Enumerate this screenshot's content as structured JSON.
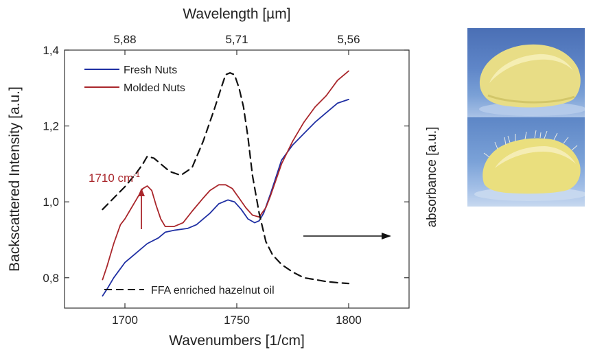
{
  "chart_data": {
    "type": "line",
    "xlabel": "Wavenumbers [1/cm]",
    "ylabel": "Backscattered Intensity [a.u.]",
    "x2label": "Wavelength [µm]",
    "y2label": "absorbance [a.u.]",
    "xlim": [
      1673,
      1827
    ],
    "ylim": [
      0.72,
      1.4
    ],
    "x_ticks": [
      1700,
      1750,
      1800
    ],
    "y_ticks": [
      0.8,
      1.0,
      1.2,
      1.4
    ],
    "y_tick_labels": [
      "0,8",
      "1,0",
      "1,2",
      "1,4"
    ],
    "top_ticks": [
      {
        "x": 1700,
        "label": "5,88"
      },
      {
        "x": 1750,
        "label": "5,71"
      },
      {
        "x": 1800,
        "label": "5,56"
      }
    ],
    "grid": false,
    "legend_position": "top-left",
    "series": [
      {
        "name": "Fresh Nuts",
        "color": "#1f2fa3",
        "style": "solid",
        "x": [
          1690,
          1692,
          1695,
          1700,
          1705,
          1710,
          1715,
          1718,
          1722,
          1728,
          1732,
          1735,
          1738,
          1742,
          1746,
          1749,
          1752,
          1755,
          1758,
          1760,
          1762,
          1765,
          1770,
          1775,
          1780,
          1785,
          1790,
          1795,
          1800
        ],
        "y": [
          0.752,
          0.77,
          0.8,
          0.84,
          0.865,
          0.89,
          0.905,
          0.92,
          0.925,
          0.93,
          0.94,
          0.955,
          0.97,
          0.995,
          1.005,
          1.0,
          0.98,
          0.955,
          0.945,
          0.95,
          0.97,
          1.02,
          1.11,
          1.15,
          1.18,
          1.21,
          1.235,
          1.26,
          1.27
        ]
      },
      {
        "name": "Molded Nuts",
        "color": "#a9262b",
        "style": "solid",
        "x": [
          1690,
          1692,
          1695,
          1698,
          1700,
          1702,
          1705,
          1708,
          1710,
          1712,
          1714,
          1716,
          1718,
          1722,
          1726,
          1730,
          1735,
          1738,
          1742,
          1745,
          1748,
          1751,
          1754,
          1757,
          1760,
          1763,
          1765,
          1770,
          1775,
          1780,
          1785,
          1790,
          1795,
          1800
        ],
        "y": [
          0.795,
          0.83,
          0.89,
          0.94,
          0.955,
          0.975,
          1.005,
          1.035,
          1.042,
          1.03,
          0.99,
          0.955,
          0.935,
          0.935,
          0.945,
          0.975,
          1.01,
          1.03,
          1.045,
          1.045,
          1.035,
          1.01,
          0.985,
          0.965,
          0.96,
          0.985,
          1.015,
          1.1,
          1.16,
          1.21,
          1.25,
          1.28,
          1.32,
          1.345
        ]
      },
      {
        "name": "FFA enriched hazelnut oil",
        "color": "#111111",
        "style": "dashed",
        "x": [
          1690,
          1695,
          1700,
          1705,
          1708,
          1710,
          1713,
          1716,
          1720,
          1725,
          1730,
          1735,
          1740,
          1743,
          1745,
          1747,
          1749,
          1751,
          1753,
          1755,
          1757,
          1760,
          1763,
          1766,
          1770,
          1775,
          1780,
          1785,
          1790,
          1795,
          1800
        ],
        "y": [
          0.98,
          1.01,
          1.04,
          1.075,
          1.1,
          1.12,
          1.115,
          1.1,
          1.08,
          1.07,
          1.09,
          1.16,
          1.245,
          1.3,
          1.335,
          1.34,
          1.335,
          1.3,
          1.25,
          1.17,
          1.07,
          0.97,
          0.895,
          0.86,
          0.835,
          0.815,
          0.8,
          0.795,
          0.79,
          0.787,
          0.785
        ]
      }
    ],
    "annotations": [
      {
        "text": "1710 cm",
        "superscript": "-1",
        "color": "#a9262b",
        "x": 1710
      }
    ]
  }
}
